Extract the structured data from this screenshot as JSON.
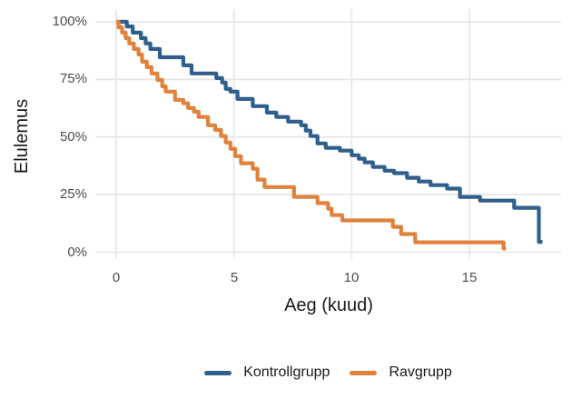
{
  "chart_data": {
    "type": "line",
    "subtype": "kaplan-meier-step",
    "title": "",
    "xlabel": "Aeg (kuud)",
    "ylabel": "Elulemus",
    "x_ticks": [
      0,
      5,
      10,
      15
    ],
    "x_tick_labels": [
      "0",
      "5",
      "10",
      "15"
    ],
    "y_ticks": [
      0,
      25,
      50,
      75,
      100
    ],
    "y_tick_labels": [
      "0%",
      "25%",
      "50%",
      "75%",
      "100%"
    ],
    "xlim": [
      -0.9,
      18.9
    ],
    "ylim": [
      0,
      100
    ],
    "grid": true,
    "legend_position": "bottom",
    "series": [
      {
        "name": "Kontrollgrupp",
        "color": "#2F5F8C",
        "end_time": 18.1,
        "points": [
          [
            0,
            100
          ],
          [
            0.45,
            98
          ],
          [
            0.7,
            95.3
          ],
          [
            1.05,
            92.9
          ],
          [
            1.25,
            90.6
          ],
          [
            1.45,
            88.2
          ],
          [
            1.85,
            84.6
          ],
          [
            2.85,
            81.1
          ],
          [
            3.2,
            77.6
          ],
          [
            4.25,
            75.6
          ],
          [
            4.5,
            73.6
          ],
          [
            4.65,
            70.9
          ],
          [
            4.85,
            69.7
          ],
          [
            5.15,
            66.5
          ],
          [
            5.8,
            63.4
          ],
          [
            6.4,
            60.6
          ],
          [
            6.8,
            58.7
          ],
          [
            7.3,
            56.7
          ],
          [
            7.85,
            55.1
          ],
          [
            8.05,
            52.8
          ],
          [
            8.25,
            50.4
          ],
          [
            8.55,
            47.2
          ],
          [
            8.9,
            45.3
          ],
          [
            9.5,
            44.1
          ],
          [
            10.0,
            42.1
          ],
          [
            10.3,
            40.6
          ],
          [
            10.55,
            39.0
          ],
          [
            10.9,
            37.0
          ],
          [
            11.4,
            35.4
          ],
          [
            11.8,
            34.3
          ],
          [
            12.35,
            32.3
          ],
          [
            12.85,
            30.7
          ],
          [
            13.35,
            29.1
          ],
          [
            14.05,
            27.6
          ],
          [
            14.6,
            24.0
          ],
          [
            15.45,
            22.4
          ],
          [
            16.9,
            19.3
          ],
          [
            17.95,
            4.5
          ]
        ]
      },
      {
        "name": "Ravgrupp",
        "color": "#E0823C",
        "end_time": 16.55,
        "points": [
          [
            0,
            100
          ],
          [
            0.1,
            97.6
          ],
          [
            0.25,
            95.3
          ],
          [
            0.4,
            92.9
          ],
          [
            0.55,
            90.6
          ],
          [
            0.75,
            88.2
          ],
          [
            0.95,
            85.8
          ],
          [
            1.1,
            82.7
          ],
          [
            1.3,
            80.3
          ],
          [
            1.5,
            77.6
          ],
          [
            1.75,
            74.8
          ],
          [
            1.95,
            72.0
          ],
          [
            2.1,
            69.7
          ],
          [
            2.5,
            66.1
          ],
          [
            2.85,
            64.6
          ],
          [
            3.05,
            62.6
          ],
          [
            3.3,
            61.0
          ],
          [
            3.5,
            58.7
          ],
          [
            3.9,
            55.1
          ],
          [
            4.2,
            53.1
          ],
          [
            4.45,
            50.4
          ],
          [
            4.65,
            47.6
          ],
          [
            4.85,
            44.9
          ],
          [
            5.05,
            41.7
          ],
          [
            5.3,
            38.6
          ],
          [
            5.8,
            36.2
          ],
          [
            6.0,
            31.5
          ],
          [
            6.3,
            28.3
          ],
          [
            7.55,
            24.0
          ],
          [
            8.55,
            21.3
          ],
          [
            9.0,
            18.9
          ],
          [
            9.15,
            16.1
          ],
          [
            9.6,
            13.8
          ],
          [
            11.75,
            11.0
          ],
          [
            12.1,
            7.9
          ],
          [
            12.7,
            4.3
          ],
          [
            16.45,
            1.6
          ]
        ]
      }
    ]
  },
  "colors": {
    "background": "#FFFFFF",
    "grid": "#E7E7E7",
    "axis_text": "#4D4D4D",
    "title_text": "#1A1A1A",
    "series_blue": "#2F5F8C",
    "series_orange": "#E0823C"
  }
}
